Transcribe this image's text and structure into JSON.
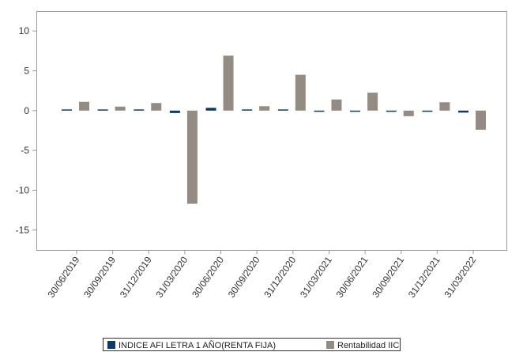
{
  "chart_data": {
    "type": "bar",
    "categories": [
      "30/06/2019",
      "30/09/2019",
      "31/12/2019",
      "31/03/2020",
      "30/06/2020",
      "30/09/2020",
      "31/12/2020",
      "31/03/2021",
      "30/06/2021",
      "30/09/2021",
      "31/12/2021",
      "31/03/2022"
    ],
    "series": [
      {
        "name": "INDICE AFI LETRA 1 AÑO(RENTA FIJA)",
        "color": "#0d3b66",
        "values": [
          0.03,
          0.02,
          0.05,
          -0.3,
          0.35,
          0.0,
          0.02,
          -0.15,
          -0.1,
          -0.05,
          -0.05,
          -0.25
        ]
      },
      {
        "name": "Rentabilidad IIC",
        "color": "#948b82",
        "values": [
          1.1,
          0.5,
          0.95,
          -11.7,
          6.9,
          0.55,
          4.5,
          1.4,
          2.25,
          -0.7,
          1.05,
          -2.4
        ]
      }
    ],
    "yticks": [
      10,
      5,
      0,
      -5,
      -10,
      -15
    ],
    "ylim": [
      -17.5,
      12.5
    ],
    "title": "",
    "xlabel": "",
    "ylabel": "",
    "grid": false,
    "legend_position": "bottom"
  }
}
